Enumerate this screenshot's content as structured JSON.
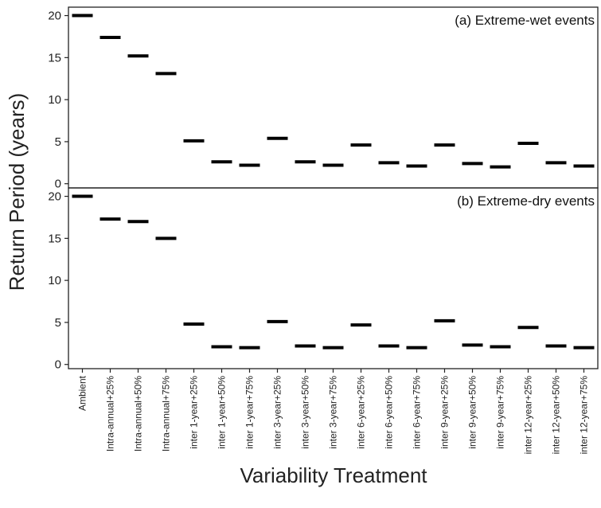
{
  "chart_data": {
    "type": "scatter",
    "marker": "horizontal-bar",
    "xlabel": "Variability Treatment",
    "ylabel": "Return Period (years)",
    "categories": [
      "Ambient",
      "Intra-annual+25%",
      "Intra-annual+50%",
      "Intra-annual+75%",
      "inter 1-year+25%",
      "inter 1-year+50%",
      "inter 1-year+75%",
      "inter 3-year+25%",
      "inter 3-year+50%",
      "inter 3-year+75%",
      "inter 6-year+25%",
      "inter 6-year+50%",
      "inter 6-year+75%",
      "inter 9-year+25%",
      "inter 9-year+50%",
      "inter 9-year+75%",
      "inter 12-year+25%",
      "inter 12-year+50%",
      "inter 12-year+75%"
    ],
    "panels": [
      {
        "title": "(a) Extreme-wet events",
        "ylim": [
          -0.5,
          21
        ],
        "yticks": [
          0,
          5,
          10,
          15,
          20
        ],
        "values": [
          20.0,
          17.4,
          15.2,
          13.1,
          5.1,
          2.6,
          2.2,
          5.4,
          2.6,
          2.2,
          4.6,
          2.5,
          2.1,
          4.6,
          2.4,
          2.0,
          4.8,
          2.5,
          2.1
        ]
      },
      {
        "title": "(b) Extreme-dry events",
        "ylim": [
          -0.5,
          21
        ],
        "yticks": [
          0,
          5,
          10,
          15,
          20
        ],
        "values": [
          20.0,
          17.3,
          17.0,
          15.0,
          4.8,
          2.1,
          2.0,
          5.1,
          2.2,
          2.0,
          4.7,
          2.2,
          2.0,
          5.2,
          2.3,
          2.1,
          4.4,
          2.2,
          2.0
        ]
      }
    ],
    "grid": false,
    "colors": {
      "marker": "#000000",
      "frame": "#222222",
      "background": "#ffffff"
    }
  }
}
